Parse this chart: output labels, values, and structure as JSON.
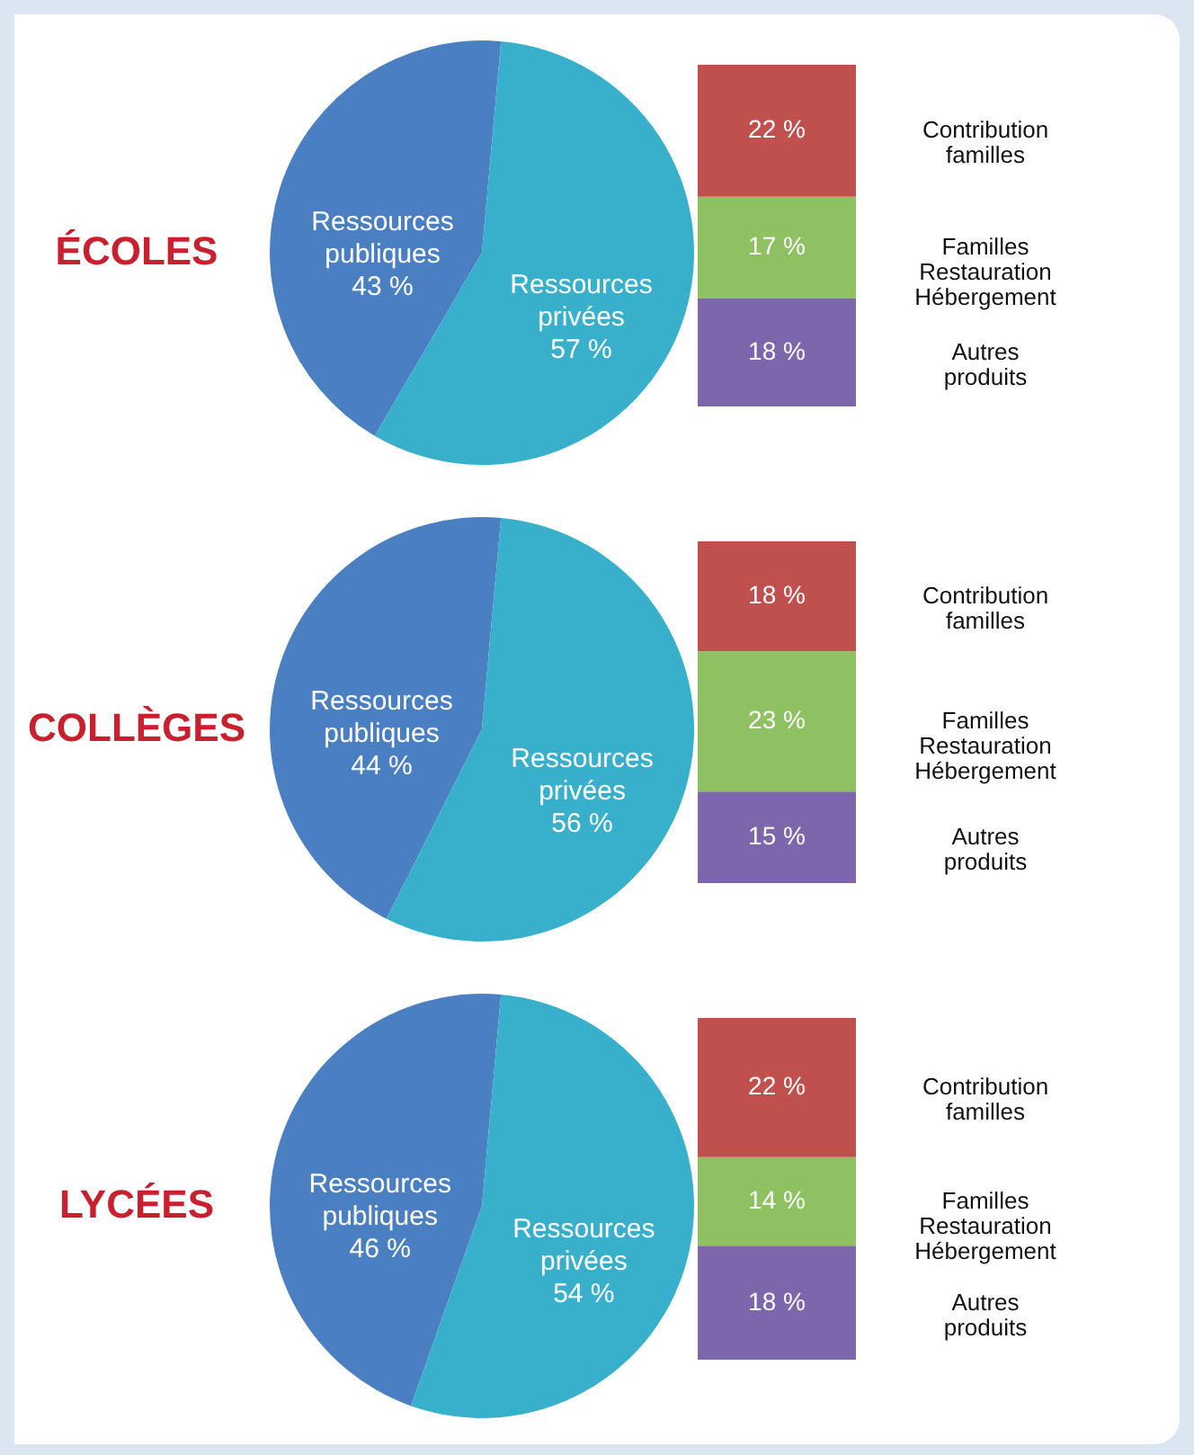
{
  "chart_data": [
    {
      "type": "pie",
      "title": "ÉCOLES",
      "categories": [
        "Ressources publiques",
        "Ressources privées"
      ],
      "values": [
        43,
        57
      ],
      "value_labels": [
        "43 %",
        "57 %"
      ],
      "colors": [
        "#4a7fc1",
        "#38b0cc"
      ]
    },
    {
      "type": "bar",
      "stacked": true,
      "categories": [
        null
      ],
      "series": [
        {
          "name": "Autres produits",
          "color": "#7d66ab",
          "values": [
            18
          ],
          "value_labels": [
            "18 %"
          ]
        },
        {
          "name": "Familles Restauration Hébergement",
          "color": "#8dc162",
          "values": [
            17
          ],
          "value_labels": [
            "17 %"
          ]
        },
        {
          "name": "Contribution familles",
          "color": "#c0504d",
          "values": [
            22
          ],
          "value_labels": [
            "22 %"
          ]
        }
      ]
    },
    {
      "type": "pie",
      "title": "COLLÈGES",
      "categories": [
        "Ressources publiques",
        "Ressources privées"
      ],
      "values": [
        44,
        56
      ],
      "value_labels": [
        "44 %",
        "56 %"
      ],
      "colors": [
        "#4a7fc1",
        "#38b0cc"
      ]
    },
    {
      "type": "bar",
      "stacked": true,
      "categories": [
        null
      ],
      "series": [
        {
          "name": "Autres produits",
          "color": "#7d66ab",
          "values": [
            15
          ],
          "value_labels": [
            "15 %"
          ]
        },
        {
          "name": "Familles Restauration Hébergement",
          "color": "#8dc162",
          "values": [
            23
          ],
          "value_labels": [
            "23 %"
          ]
        },
        {
          "name": "Contribution familles",
          "color": "#c0504d",
          "values": [
            18
          ],
          "value_labels": [
            "18 %"
          ]
        }
      ]
    },
    {
      "type": "pie",
      "title": "LYCÉES",
      "categories": [
        "Ressources publiques",
        "Ressources privées"
      ],
      "values": [
        46,
        54
      ],
      "value_labels": [
        "46 %",
        "54 %"
      ],
      "colors": [
        "#4a7fc1",
        "#38b0cc"
      ]
    },
    {
      "type": "bar",
      "stacked": true,
      "categories": [
        null
      ],
      "series": [
        {
          "name": "Autres produits",
          "color": "#7d66ab",
          "values": [
            18
          ],
          "value_labels": [
            "18 %"
          ]
        },
        {
          "name": "Familles Restauration Hébergement",
          "color": "#8dc162",
          "values": [
            14
          ],
          "value_labels": [
            "14 %"
          ]
        },
        {
          "name": "Contribution familles",
          "color": "#c0504d",
          "values": [
            22
          ],
          "value_labels": [
            "22 %"
          ]
        }
      ]
    }
  ]
}
